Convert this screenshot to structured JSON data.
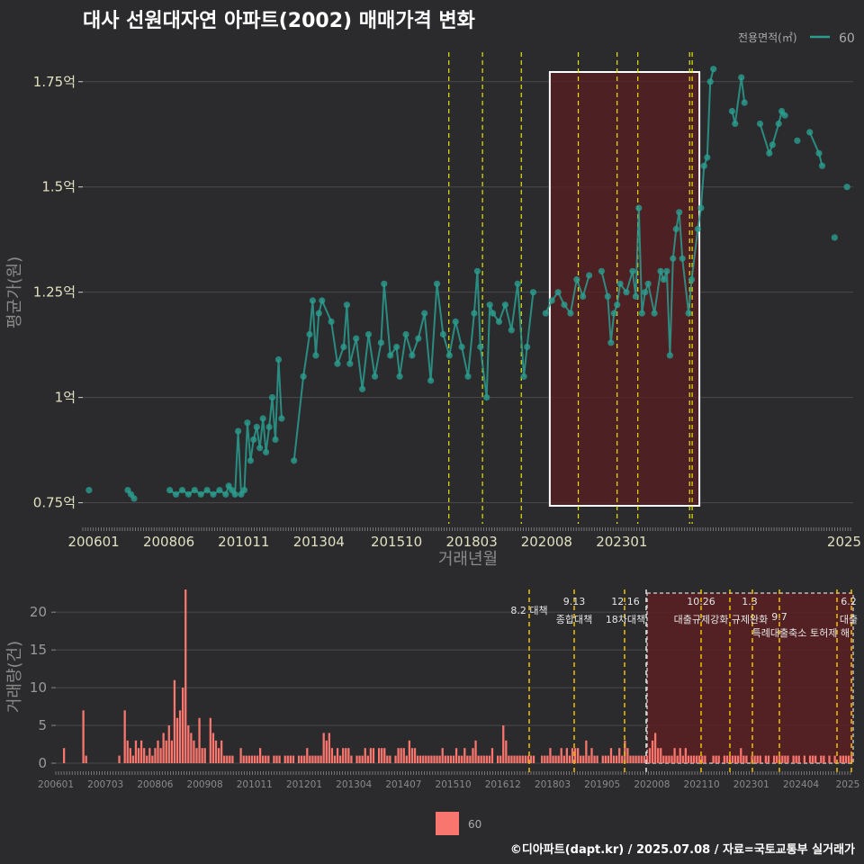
{
  "title": "대사 선원대자연 아파트(2002) 매매가격 변화",
  "footer": "©디아파트(dapt.kr) / 2025.07.08 / 자료=국토교통부 실거래가",
  "colors": {
    "background": "#2b2b2d",
    "price_series": "#2a9d8f",
    "volume_bar": "#f8766d",
    "policy_line": "#e6e600",
    "highlight_fill": "#5a1e22",
    "highlight_border": "#ffffff"
  },
  "chart_data": [
    {
      "type": "line",
      "ylabel": "평균가(원)",
      "xlabel": "거래년월",
      "y_ticks": [
        {
          "value": 0.75,
          "label": "0.75억"
        },
        {
          "value": 1.0,
          "label": "1억"
        },
        {
          "value": 1.25,
          "label": "1.25억"
        },
        {
          "value": 1.5,
          "label": "1.5억"
        },
        {
          "value": 1.75,
          "label": "1.75억"
        }
      ],
      "x_ticks": [
        "200601",
        "200806",
        "201011",
        "201304",
        "201510",
        "201803",
        "202008",
        "202301",
        "2025"
      ],
      "ylim": [
        0.7,
        1.82
      ],
      "legend": {
        "title": "전용면적(㎡)",
        "entries": [
          "60"
        ],
        "position": "top-right"
      },
      "highlight_range": {
        "from": "2020.11",
        "to": "2025.06"
      },
      "policy_dates": [
        "2017.08",
        "2018.09",
        "2019.12",
        "2021.10",
        "2023.01",
        "2023.09",
        "2025.05",
        "2025.06"
      ],
      "series": [
        {
          "name": "60",
          "points": [
            [
              2006.0,
              0.78
            ],
            [
              2007.25,
              0.78
            ],
            [
              2007.35,
              0.77
            ],
            [
              2007.45,
              0.76
            ],
            [
              2008.6,
              0.78
            ],
            [
              2008.8,
              0.77
            ],
            [
              2009.0,
              0.78
            ],
            [
              2009.2,
              0.77
            ],
            [
              2009.4,
              0.78
            ],
            [
              2009.6,
              0.77
            ],
            [
              2009.8,
              0.78
            ],
            [
              2010.0,
              0.77
            ],
            [
              2010.2,
              0.78
            ],
            [
              2010.4,
              0.77
            ],
            [
              2010.5,
              0.79
            ],
            [
              2010.6,
              0.78
            ],
            [
              2010.7,
              0.77
            ],
            [
              2010.8,
              0.92
            ],
            [
              2010.9,
              0.77
            ],
            [
              2011.0,
              0.78
            ],
            [
              2011.1,
              0.94
            ],
            [
              2011.2,
              0.85
            ],
            [
              2011.3,
              0.9
            ],
            [
              2011.4,
              0.93
            ],
            [
              2011.5,
              0.88
            ],
            [
              2011.6,
              0.95
            ],
            [
              2011.7,
              0.87
            ],
            [
              2011.8,
              0.93
            ],
            [
              2011.9,
              1.0
            ],
            [
              2012.0,
              0.9
            ],
            [
              2012.1,
              1.09
            ],
            [
              2012.2,
              0.95
            ],
            [
              2012.6,
              0.85
            ],
            [
              2012.9,
              1.05
            ],
            [
              2013.1,
              1.15
            ],
            [
              2013.2,
              1.23
            ],
            [
              2013.3,
              1.1
            ],
            [
              2013.4,
              1.2
            ],
            [
              2013.5,
              1.23
            ],
            [
              2013.8,
              1.18
            ],
            [
              2014.0,
              1.08
            ],
            [
              2014.2,
              1.12
            ],
            [
              2014.3,
              1.22
            ],
            [
              2014.4,
              1.08
            ],
            [
              2014.6,
              1.14
            ],
            [
              2014.8,
              1.02
            ],
            [
              2015.0,
              1.15
            ],
            [
              2015.2,
              1.05
            ],
            [
              2015.4,
              1.13
            ],
            [
              2015.5,
              1.27
            ],
            [
              2015.7,
              1.1
            ],
            [
              2015.9,
              1.12
            ],
            [
              2016.0,
              1.05
            ],
            [
              2016.2,
              1.15
            ],
            [
              2016.4,
              1.1
            ],
            [
              2016.6,
              1.14
            ],
            [
              2016.8,
              1.2
            ],
            [
              2017.0,
              1.04
            ],
            [
              2017.2,
              1.27
            ],
            [
              2017.4,
              1.15
            ],
            [
              2017.6,
              1.1
            ],
            [
              2017.8,
              1.18
            ],
            [
              2018.0,
              1.12
            ],
            [
              2018.2,
              1.05
            ],
            [
              2018.4,
              1.2
            ],
            [
              2018.5,
              1.3
            ],
            [
              2018.6,
              1.12
            ],
            [
              2018.8,
              1.0
            ],
            [
              2018.9,
              1.22
            ],
            [
              2019.0,
              1.2
            ],
            [
              2019.2,
              1.18
            ],
            [
              2019.4,
              1.22
            ],
            [
              2019.6,
              1.16
            ],
            [
              2019.8,
              1.27
            ],
            [
              2020.0,
              1.05
            ],
            [
              2020.1,
              1.12
            ],
            [
              2020.3,
              1.25
            ],
            [
              2020.7,
              1.2
            ],
            [
              2020.9,
              1.23
            ],
            [
              2021.1,
              1.25
            ],
            [
              2021.3,
              1.22
            ],
            [
              2021.5,
              1.2
            ],
            [
              2021.7,
              1.28
            ],
            [
              2021.9,
              1.24
            ],
            [
              2022.1,
              1.29
            ],
            [
              2022.5,
              1.3
            ],
            [
              2022.7,
              1.24
            ],
            [
              2022.8,
              1.13
            ],
            [
              2022.9,
              1.2
            ],
            [
              2023.0,
              1.22
            ],
            [
              2023.1,
              1.27
            ],
            [
              2023.3,
              1.25
            ],
            [
              2023.5,
              1.3
            ],
            [
              2023.6,
              1.24
            ],
            [
              2023.7,
              1.45
            ],
            [
              2023.8,
              1.2
            ],
            [
              2023.9,
              1.25
            ],
            [
              2024.0,
              1.27
            ],
            [
              2024.2,
              1.2
            ],
            [
              2024.4,
              1.3
            ],
            [
              2024.5,
              1.28
            ],
            [
              2024.6,
              1.3
            ],
            [
              2024.7,
              1.1
            ],
            [
              2024.8,
              1.33
            ],
            [
              2024.9,
              1.4
            ],
            [
              2025.0,
              1.44
            ],
            [
              2025.1,
              1.33
            ],
            [
              2025.3,
              1.2
            ],
            [
              2025.4,
              1.28
            ],
            [
              2025.6,
              1.4
            ],
            [
              2025.7,
              1.45
            ],
            [
              2025.8,
              1.55
            ],
            [
              2025.9,
              1.57
            ],
            [
              2026.0,
              1.75
            ],
            [
              2026.1,
              1.78
            ],
            [
              2026.7,
              1.68
            ],
            [
              2026.8,
              1.65
            ],
            [
              2027.0,
              1.76
            ],
            [
              2027.1,
              1.7
            ],
            [
              2027.6,
              1.65
            ],
            [
              2027.9,
              1.58
            ],
            [
              2028.0,
              1.6
            ],
            [
              2028.2,
              1.65
            ],
            [
              2028.3,
              1.68
            ],
            [
              2028.4,
              1.67
            ],
            [
              2028.8,
              1.61
            ],
            [
              2029.2,
              1.63
            ],
            [
              2029.5,
              1.58
            ],
            [
              2029.6,
              1.55
            ],
            [
              2030.0,
              1.38
            ],
            [
              2030.4,
              1.5
            ]
          ]
        }
      ]
    },
    {
      "type": "bar",
      "ylabel": "거래량(건)",
      "y_ticks": [
        0,
        5,
        10,
        15,
        20
      ],
      "ylim": [
        0,
        23
      ],
      "x_ticks": [
        "200601",
        "200703",
        "200806",
        "200908",
        "201011",
        "201201",
        "201304",
        "201407",
        "201510",
        "201612",
        "201803",
        "201905",
        "202008",
        "202110",
        "202301",
        "202404",
        "2025"
      ],
      "legend": {
        "entries": [
          "60"
        ],
        "position": "bottom"
      },
      "annotations": [
        {
          "date": "8.2",
          "label": "대책"
        },
        {
          "date": "9.13",
          "label": "종합대책"
        },
        {
          "date": "12.16",
          "label": "18차대책"
        },
        {
          "date": "10.26",
          "label": "대출규제강화"
        },
        {
          "date": "1.3",
          "label": "규제완화"
        },
        {
          "date": "9.7",
          "label": "특례대출축소"
        },
        {
          "date": "",
          "label": "토허제 해"
        },
        {
          "date": "6.2",
          "label": "대출"
        }
      ],
      "series": [
        {
          "name": "60",
          "values": [
            2,
            0,
            0,
            0,
            0,
            0,
            0,
            7,
            1,
            0,
            0,
            0,
            0,
            0,
            0,
            0,
            0,
            0,
            0,
            0,
            1,
            0,
            7,
            3,
            2,
            1,
            3,
            2,
            3,
            2,
            1,
            2,
            1,
            2,
            3,
            2,
            4,
            3,
            5,
            3,
            11,
            6,
            7,
            10,
            23,
            5,
            4,
            3,
            2,
            6,
            2,
            2,
            0,
            6,
            4,
            3,
            2,
            3,
            1,
            1,
            1,
            1,
            0,
            0,
            2,
            1,
            1,
            1,
            1,
            1,
            1,
            2,
            1,
            1,
            1,
            0,
            1,
            1,
            1,
            0,
            1,
            1,
            1,
            1,
            0,
            1,
            1,
            1,
            2,
            1,
            1,
            1,
            1,
            1,
            4,
            3,
            4,
            2,
            1,
            2,
            1,
            2,
            2,
            2,
            1,
            0,
            1,
            1,
            1,
            2,
            1,
            2,
            2,
            0,
            2,
            2,
            2,
            1,
            1,
            0,
            1,
            2,
            2,
            2,
            1,
            3,
            2,
            2,
            1,
            1,
            1,
            1,
            1,
            1,
            1,
            1,
            1,
            2,
            1,
            1,
            1,
            1,
            2,
            1,
            1,
            2,
            1,
            1,
            2,
            3,
            1,
            1,
            1,
            1,
            1,
            2,
            0,
            1,
            1,
            5,
            3,
            1,
            1,
            1,
            1,
            1,
            1,
            1,
            1,
            1,
            1,
            0,
            0,
            1,
            1,
            1,
            2,
            1,
            1,
            1,
            2,
            1,
            2,
            1,
            2,
            2,
            2,
            1,
            1,
            3,
            1,
            2,
            1,
            1,
            0,
            1,
            1,
            1,
            2,
            1,
            1,
            2,
            1,
            3,
            2,
            1,
            1,
            1,
            1,
            1,
            1,
            1,
            2,
            3,
            4,
            2,
            2,
            1,
            1,
            1,
            1,
            2,
            1,
            2,
            1,
            2,
            1,
            1,
            1,
            1,
            1,
            1,
            1,
            0,
            0,
            1,
            1,
            1,
            0,
            1,
            1,
            1,
            1,
            1,
            1,
            2,
            1,
            1,
            0,
            1,
            1,
            1,
            1,
            0,
            1,
            1,
            0,
            1,
            1,
            1,
            1,
            1,
            1,
            0,
            1,
            1,
            1,
            0,
            1,
            0,
            1,
            1,
            1,
            0,
            1,
            1,
            0,
            1,
            0,
            1,
            0,
            1,
            1,
            1,
            1,
            1
          ]
        }
      ]
    }
  ]
}
